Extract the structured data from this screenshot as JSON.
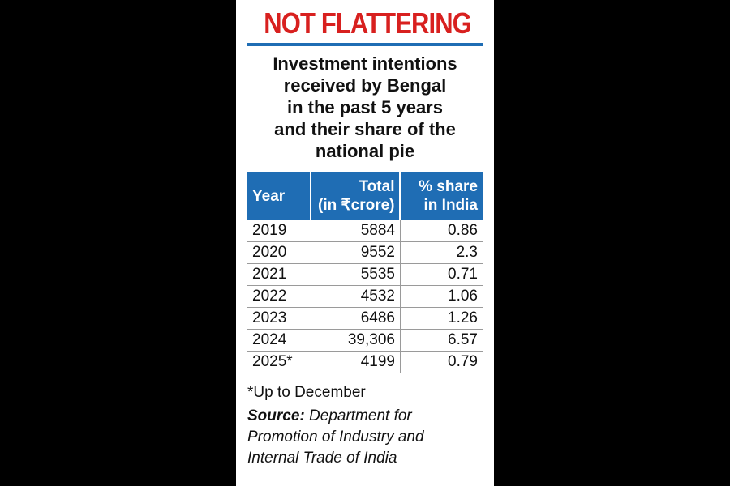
{
  "headline": "NOT FLATTERING",
  "subtitle": [
    "Investment intentions",
    "received by Bengal",
    "in the past 5 years",
    "and their share of the",
    "national pie"
  ],
  "table": {
    "headers": {
      "year": "Year",
      "total_line1": "Total",
      "total_line2": "(in ₹crore)",
      "share_line1": "% share",
      "share_line2": "in India"
    },
    "rows": [
      {
        "year": "2019",
        "total": "5884",
        "share": "0.86"
      },
      {
        "year": "2020",
        "total": "9552",
        "share": "2.3"
      },
      {
        "year": "2021",
        "total": "5535",
        "share": "0.71"
      },
      {
        "year": "2022",
        "total": "4532",
        "share": "1.06"
      },
      {
        "year": "2023",
        "total": "6486",
        "share": "1.26"
      },
      {
        "year": "2024",
        "total": "39,306",
        "share": "6.57"
      },
      {
        "year": "2025*",
        "total": "4199",
        "share": "0.79"
      }
    ]
  },
  "footnote": "*Up to December",
  "source": {
    "label": "Source:",
    "lines": [
      "Department for",
      "Promotion of Industry and",
      "Internal Trade of India"
    ]
  },
  "colors": {
    "headline": "#d8201f",
    "header_bg": "#1f6db4"
  }
}
